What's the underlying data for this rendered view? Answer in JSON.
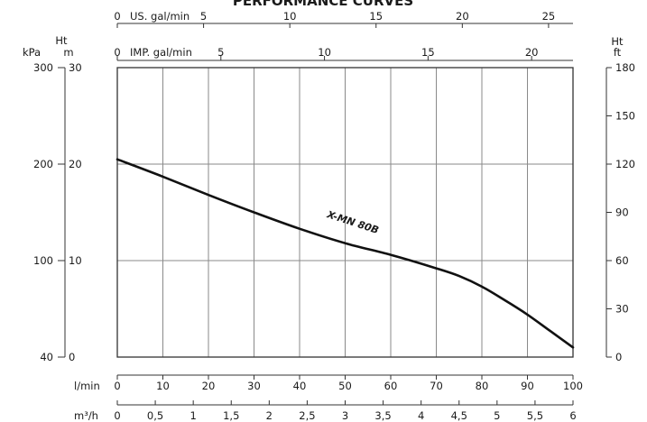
{
  "chart_data": {
    "type": "line",
    "title": "PERFORMANCE CURVES",
    "x_axes": {
      "lmin": {
        "unit": "l/min",
        "ticks": [
          "0",
          "10",
          "20",
          "30",
          "40",
          "50",
          "60",
          "70",
          "80",
          "90",
          "100"
        ],
        "values": [
          0,
          10,
          20,
          30,
          40,
          50,
          60,
          70,
          80,
          90,
          100
        ]
      },
      "m3h": {
        "unit": "m³/h",
        "ticks": [
          "0",
          "0,5",
          "1",
          "1,5",
          "2",
          "2,5",
          "3",
          "3,5",
          "4",
          "4,5",
          "5",
          "5,5",
          "6"
        ],
        "values": [
          0,
          0.5,
          1,
          1.5,
          2,
          2.5,
          3,
          3.5,
          4,
          4.5,
          5,
          5.5,
          6
        ]
      },
      "usgal": {
        "unit": "US. gal/min",
        "ticks": [
          "0",
          "5",
          "10",
          "15",
          "20",
          "25"
        ],
        "values": [
          0,
          5,
          10,
          15,
          20,
          25
        ]
      },
      "impgal": {
        "unit": "IMP. gal/min",
        "ticks": [
          "0",
          "5",
          "10",
          "15",
          "20"
        ],
        "values": [
          0,
          5,
          10,
          15,
          20
        ]
      }
    },
    "y_axes": {
      "kpa": {
        "unit": "kPa",
        "ticks": [
          "40",
          "100",
          "200",
          "300"
        ],
        "values": [
          40,
          100,
          200,
          300
        ]
      },
      "m": {
        "header": "Ht",
        "unit": "m",
        "ticks": [
          "0",
          "10",
          "20",
          "30"
        ],
        "values": [
          0,
          10,
          20,
          30
        ]
      },
      "ft": {
        "header": "Ht",
        "unit": "ft",
        "ticks": [
          "0",
          "30",
          "60",
          "90",
          "120",
          "150",
          "180"
        ],
        "values": [
          0,
          30,
          60,
          90,
          120,
          150,
          180
        ]
      }
    },
    "grid": true,
    "xlim": [
      0,
      100
    ],
    "ylim": [
      0,
      30
    ],
    "series": [
      {
        "name": "X-MN 80B",
        "x_unit": "l/min",
        "y_unit": "m",
        "x": [
          0,
          10,
          20,
          30,
          40,
          50,
          60,
          70,
          75,
          80,
          85,
          90,
          95,
          100
        ],
        "y": [
          20.5,
          18.7,
          16.8,
          15.0,
          13.3,
          11.8,
          10.6,
          9.2,
          8.4,
          7.3,
          5.9,
          4.4,
          2.7,
          1.0
        ]
      }
    ],
    "colors": {
      "curve": "#111111",
      "grid": "#8a8a8a",
      "axis": "#333333"
    }
  }
}
